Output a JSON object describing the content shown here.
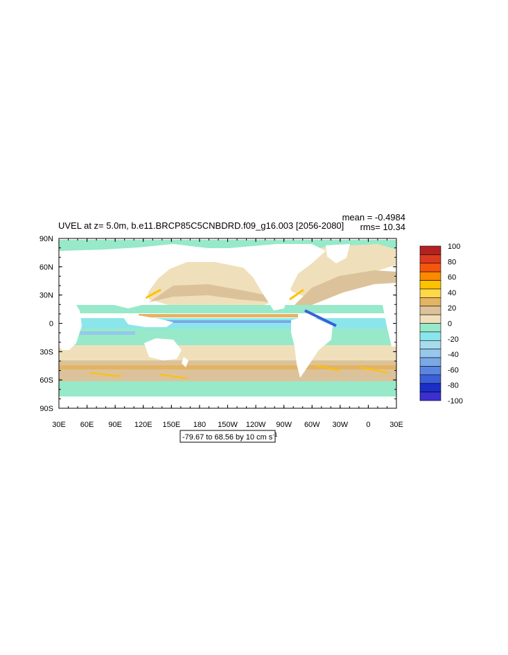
{
  "title": "UVEL at z=   5.0m, b.e11.BRCP85C5CNBDRD.f09_g16.003 [2056-2080]",
  "stats": {
    "mean": "mean = -0.4984",
    "rms": "rms= 10.34"
  },
  "info_box": {
    "text": "-79.67 to 68.56 by 10 cm s",
    "superscript": "-1"
  },
  "map": {
    "projection": "cylindrical equidistant",
    "lon_range": [
      30,
      390
    ],
    "lat_range": [
      -90,
      90
    ],
    "lat_labels": [
      {
        "lat": 90,
        "label": "90N"
      },
      {
        "lat": 60,
        "label": "60N"
      },
      {
        "lat": 30,
        "label": "30N"
      },
      {
        "lat": 0,
        "label": "0"
      },
      {
        "lat": -30,
        "label": "30S"
      },
      {
        "lat": -60,
        "label": "60S"
      },
      {
        "lat": -90,
        "label": "90S"
      }
    ],
    "lon_labels": [
      {
        "lon": 30,
        "label": "30E"
      },
      {
        "lon": 60,
        "label": "60E"
      },
      {
        "lon": 90,
        "label": "90E"
      },
      {
        "lon": 120,
        "label": "120E"
      },
      {
        "lon": 150,
        "label": "150E"
      },
      {
        "lon": 180,
        "label": "180"
      },
      {
        "lon": 210,
        "label": "150W"
      },
      {
        "lon": 240,
        "label": "120W"
      },
      {
        "lon": 270,
        "label": "90W"
      },
      {
        "lon": 300,
        "label": "60W"
      },
      {
        "lon": 330,
        "label": "30W"
      },
      {
        "lon": 360,
        "label": "0"
      },
      {
        "lon": 390,
        "label": "30E"
      }
    ]
  },
  "colorbar": {
    "labels": [
      "100",
      "80",
      "60",
      "40",
      "20",
      "0",
      "-20",
      "-40",
      "-60",
      "-80",
      "-100"
    ],
    "colors": [
      "#b22222",
      "#dc3a1f",
      "#f5560c",
      "#fb8a00",
      "#ffc200",
      "#ffd84a",
      "#e3b463",
      "#dcc29a",
      "#efe0bb",
      "#97e9c9",
      "#8be6ec",
      "#a7dcec",
      "#96c7ec",
      "#7aa9e6",
      "#5b86e0",
      "#3a5fd8",
      "#1a2fc8",
      "#3b2fd0"
    ]
  }
}
